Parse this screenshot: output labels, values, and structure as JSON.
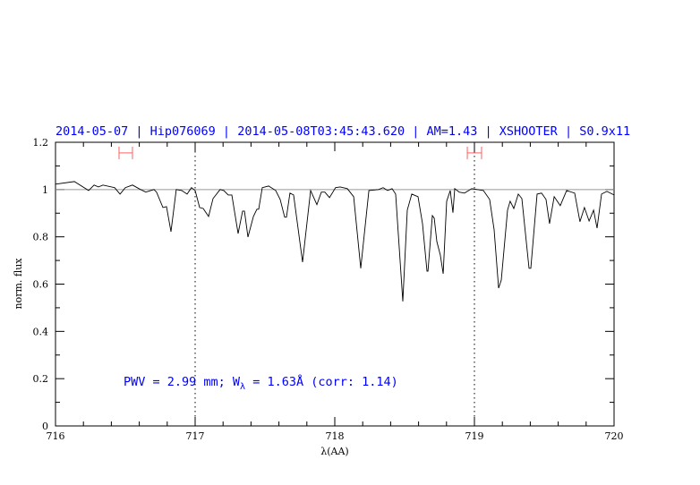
{
  "chart_data": {
    "type": "line",
    "title": "2014-05-07 | Hip076069 | 2014-05-08T03:45:43.620 | AM=1.43 | XSHOOTER | S0.9x11",
    "xlabel": "λ(AA)",
    "ylabel": "norm. flux",
    "xlim": [
      716,
      720
    ],
    "ylim": [
      0,
      1.2
    ],
    "xticks": [
      "716",
      "717",
      "718",
      "719",
      "720"
    ],
    "yticks": [
      "0",
      "0.2",
      "0.4",
      "0.6",
      "0.8",
      "1",
      "1.2"
    ],
    "grid": false,
    "reference_line_y": 1.0,
    "vertical_dotted_lines_x": [
      717,
      719
    ],
    "annotation": {
      "prefix": "PWV = 2.99 mm; W",
      "sub": "λ",
      "suffix": " = 1.63Å (corr: 1.14)",
      "x": 716.5,
      "y": 0.19
    },
    "ranges": [
      {
        "x": [
          716.455,
          716.551
        ],
        "y": 1.155
      },
      {
        "x": [
          718.949,
          719.051
        ],
        "y": 1.155
      }
    ],
    "colors": {
      "title": "#0000ff",
      "annotation": "#0000ff",
      "spectrum": "#000000",
      "reference_line": "#999999",
      "ranges": "#ff6060"
    },
    "series": [
      {
        "x": [
          716.0,
          716.135,
          716.237,
          716.276,
          716.308,
          716.34,
          716.423,
          716.462,
          716.5,
          716.551,
          716.609,
          716.647,
          716.705,
          716.724,
          716.769,
          716.795,
          716.827,
          716.865,
          716.904,
          716.942,
          716.974,
          717.0,
          717.032,
          717.058,
          717.096,
          717.128,
          717.179,
          717.205,
          717.237,
          717.263,
          717.308,
          717.34,
          717.353,
          717.378,
          717.417,
          717.442,
          717.455,
          717.481,
          717.526,
          717.577,
          717.609,
          717.641,
          717.654,
          717.679,
          717.705,
          717.769,
          717.827,
          717.872,
          717.904,
          717.929,
          717.962,
          718.006,
          718.038,
          718.09,
          718.135,
          718.186,
          718.244,
          718.314,
          718.346,
          718.378,
          718.41,
          718.436,
          718.487,
          718.519,
          718.551,
          718.596,
          718.628,
          718.66,
          718.667,
          718.699,
          718.712,
          718.731,
          718.756,
          718.776,
          718.801,
          718.827,
          718.846,
          718.859,
          718.891,
          718.929,
          718.981,
          719.064,
          719.109,
          719.141,
          719.173,
          719.192,
          719.237,
          719.256,
          719.282,
          719.314,
          719.34,
          719.391,
          719.404,
          719.449,
          719.481,
          719.513,
          719.538,
          719.571,
          719.615,
          719.66,
          719.718,
          719.756,
          719.788,
          719.821,
          719.853,
          719.878,
          719.91,
          719.949,
          720.0
        ],
        "y": [
          1.023,
          1.034,
          0.996,
          1.019,
          1.011,
          1.019,
          1.008,
          0.981,
          1.008,
          1.019,
          1.0,
          0.989,
          1.0,
          0.989,
          0.924,
          0.928,
          0.822,
          1.0,
          0.996,
          0.981,
          1.008,
          0.996,
          0.924,
          0.92,
          0.886,
          0.962,
          1.0,
          0.996,
          0.977,
          0.977,
          0.814,
          0.909,
          0.909,
          0.799,
          0.886,
          0.917,
          0.917,
          1.008,
          1.015,
          0.996,
          0.958,
          0.883,
          0.883,
          0.985,
          0.977,
          0.693,
          0.996,
          0.936,
          0.989,
          0.989,
          0.966,
          1.008,
          1.011,
          1.004,
          0.97,
          0.667,
          0.996,
          1.0,
          1.008,
          0.996,
          1.004,
          0.981,
          0.527,
          0.913,
          0.981,
          0.97,
          0.856,
          0.655,
          0.655,
          0.89,
          0.879,
          0.78,
          0.723,
          0.644,
          0.951,
          0.996,
          0.902,
          1.004,
          0.989,
          0.985,
          1.004,
          0.996,
          0.958,
          0.83,
          0.583,
          0.617,
          0.913,
          0.951,
          0.92,
          0.981,
          0.962,
          0.667,
          0.667,
          0.981,
          0.985,
          0.958,
          0.856,
          0.97,
          0.932,
          0.996,
          0.985,
          0.864,
          0.924,
          0.867,
          0.913,
          0.837,
          0.981,
          0.992,
          0.977
        ]
      }
    ]
  }
}
